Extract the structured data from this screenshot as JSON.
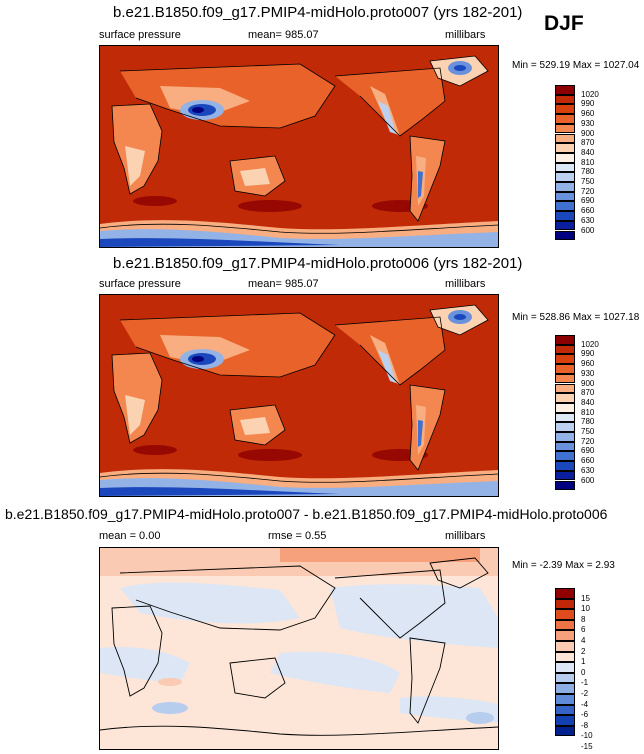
{
  "season": "DJF",
  "panels": [
    {
      "title": "b.e21.B1850.f09_g17.PMIP4-midHolo.proto007 (yrs 182-201)",
      "left_label": "surface pressure",
      "center_label": "mean= 985.07",
      "right_label": "millibars",
      "minmax": "Min = 529.19 Max = 1027.04",
      "colorbar_labels": [
        "1020",
        "990",
        "960",
        "930",
        "900",
        "870",
        "840",
        "810",
        "780",
        "750",
        "720",
        "690",
        "660",
        "630",
        "600"
      ]
    },
    {
      "title": "b.e21.B1850.f09_g17.PMIP4-midHolo.proto006 (yrs 182-201)",
      "left_label": "surface pressure",
      "center_label": "mean= 985.07",
      "right_label": "millibars",
      "minmax": "Min = 528.86 Max = 1027.18",
      "colorbar_labels": [
        "1020",
        "990",
        "960",
        "930",
        "900",
        "870",
        "840",
        "810",
        "780",
        "750",
        "720",
        "690",
        "660",
        "630",
        "600"
      ]
    },
    {
      "title": "b.e21.B1850.f09_g17.PMIP4-midHolo.proto007 - b.e21.B1850.f09_g17.PMIP4-midHolo.proto006",
      "left_label": "mean =   0.00",
      "center_label": "rmse =   0.55",
      "right_label": "millibars",
      "minmax": "Min =  -2.39 Max =   2.93",
      "colorbar_labels": [
        "15",
        "10",
        "8",
        "6",
        "4",
        "2",
        "1",
        "0",
        "-1",
        "-2",
        "-4",
        "-6",
        "-8",
        "-10",
        "-15"
      ]
    }
  ],
  "colors": {
    "pressure_scale": [
      "#8b0000",
      "#c02a06",
      "#d8400e",
      "#e9622a",
      "#f3874f",
      "#f8ae80",
      "#fbd3b3",
      "#fdf0e4",
      "#dde8f6",
      "#bcd1ef",
      "#93b3e6",
      "#6a91dc",
      "#4070d0",
      "#1b47bd",
      "#0b1e9e",
      "#000080"
    ],
    "diff_scale": [
      "#900000",
      "#c02608",
      "#de4b1c",
      "#ee7448",
      "#f6a17c",
      "#facbb2",
      "#fde6d8",
      "#dce6f5",
      "#b6cdee",
      "#8dafe4",
      "#5f8bd8",
      "#3563c8",
      "#1440b2",
      "#00208f"
    ]
  },
  "chart_data": [
    {
      "type": "heatmap",
      "title": "b.e21.B1850.f09_g17.PMIP4-midHolo.proto007 (yrs 182-201)",
      "variable": "surface pressure",
      "units": "millibars",
      "mean": 985.07,
      "min": 529.19,
      "max": 1027.04,
      "contour_levels": [
        600,
        630,
        660,
        690,
        720,
        750,
        780,
        810,
        840,
        870,
        900,
        930,
        960,
        990,
        1020
      ]
    },
    {
      "type": "heatmap",
      "title": "b.e21.B1850.f09_g17.PMIP4-midHolo.proto006 (yrs 182-201)",
      "variable": "surface pressure",
      "units": "millibars",
      "mean": 985.07,
      "min": 528.86,
      "max": 1027.18,
      "contour_levels": [
        600,
        630,
        660,
        690,
        720,
        750,
        780,
        810,
        840,
        870,
        900,
        930,
        960,
        990,
        1020
      ]
    },
    {
      "type": "heatmap",
      "title": "b.e21.B1850.f09_g17.PMIP4-midHolo.proto007 - b.e21.B1850.f09_g17.PMIP4-midHolo.proto006",
      "units": "millibars",
      "mean": 0.0,
      "rmse": 0.55,
      "min": -2.39,
      "max": 2.93,
      "contour_levels": [
        -15,
        -10,
        -8,
        -6,
        -4,
        -2,
        -1,
        0,
        1,
        2,
        4,
        6,
        8,
        10,
        15
      ]
    }
  ]
}
